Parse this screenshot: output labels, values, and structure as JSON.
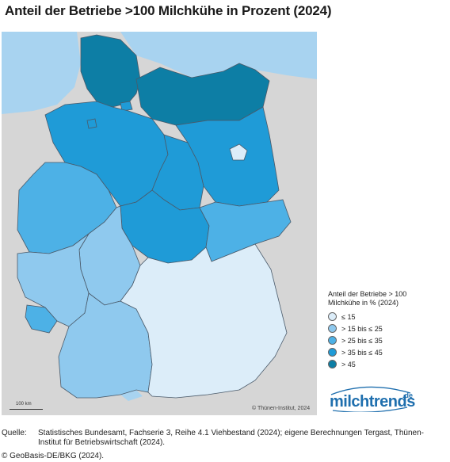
{
  "title": "Anteil der Betriebe >100 Milchkühe in Prozent (2024)",
  "map": {
    "copyright": "© Thünen-Institut, 2024",
    "scalebar_label": "100 km",
    "colors": {
      "background": "#d6d6d6",
      "water": "#a8d3f0",
      "le15": "#dcedf9",
      "c15_25": "#8fc9ee",
      "c25_35": "#4db1e6",
      "c35_45": "#1f9bd7",
      "gt45": "#0d7ea5",
      "border": "#4a5a6a"
    },
    "regions": [
      {
        "name": "Schleswig-Holstein",
        "class": "gt45"
      },
      {
        "name": "Mecklenburg-Vorpommern",
        "class": "gt45"
      },
      {
        "name": "Hamburg",
        "class": "c35_45"
      },
      {
        "name": "Niedersachsen",
        "class": "c35_45"
      },
      {
        "name": "Bremen",
        "class": "c35_45"
      },
      {
        "name": "Brandenburg",
        "class": "c35_45"
      },
      {
        "name": "Berlin",
        "class": "le15"
      },
      {
        "name": "Sachsen-Anhalt",
        "class": "c35_45"
      },
      {
        "name": "Nordrhein-Westfalen",
        "class": "c25_35"
      },
      {
        "name": "Thüringen",
        "class": "c35_45"
      },
      {
        "name": "Sachsen",
        "class": "c25_35"
      },
      {
        "name": "Hessen",
        "class": "c15_25"
      },
      {
        "name": "Rheinland-Pfalz",
        "class": "c15_25"
      },
      {
        "name": "Saarland",
        "class": "c25_35"
      },
      {
        "name": "Baden-Württemberg",
        "class": "c15_25"
      },
      {
        "name": "Bayern",
        "class": "le15"
      }
    ]
  },
  "legend": {
    "title": "Anteil der Betriebe > 100 Milchkühe in % (2024)",
    "items": [
      {
        "label": "≤ 15",
        "color": "#dcedf9"
      },
      {
        "label": "> 15 bis ≤ 25",
        "color": "#8fc9ee"
      },
      {
        "label": "> 25 bis ≤ 35",
        "color": "#4db1e6"
      },
      {
        "label": "> 35 bis ≤ 45",
        "color": "#1f9bd7"
      },
      {
        "label": "> 45",
        "color": "#0d7ea5"
      }
    ]
  },
  "logo": {
    "text": "milchtrends",
    "superscript": ".de"
  },
  "source": {
    "label": "Quelle:",
    "text": "Statistisches Bundesamt, Fachserie 3, Reihe 4.1 Viehbestand (2024); eigene Berechnungen Tergast, Thünen-Institut für Betriebswirtschaft (2024).",
    "geobasis": "© GeoBasis-DE/BKG (2024)."
  }
}
